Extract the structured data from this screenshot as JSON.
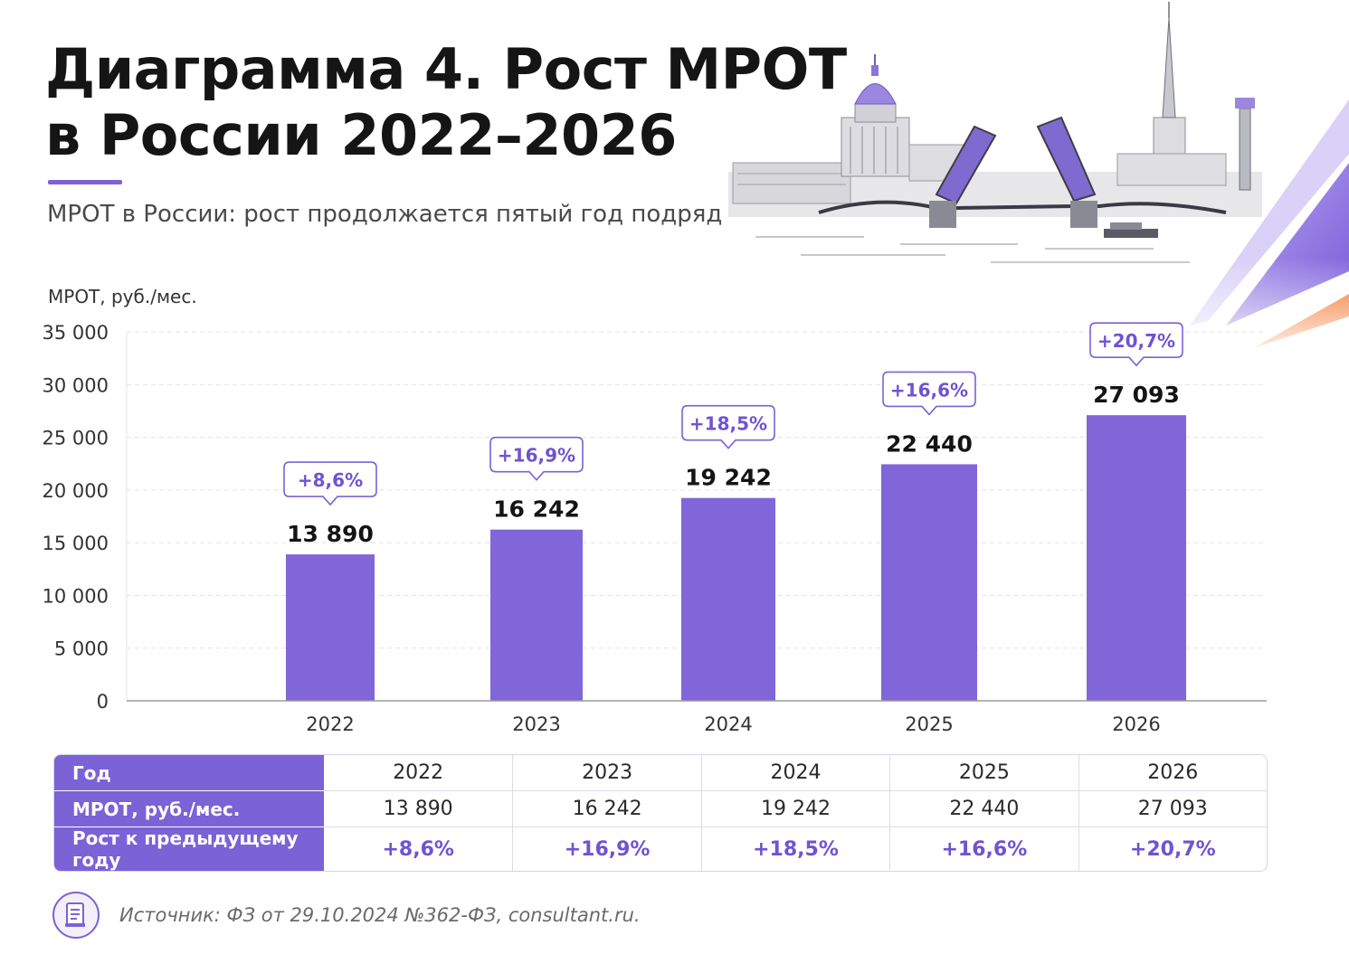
{
  "header": {
    "title_line1": "Диаграмма 4. Рост МРОТ",
    "title_line2": "в России 2022–2026",
    "subtitle": "МРОТ в России: рост продолжается пятый год подряд"
  },
  "colors": {
    "bar": "#8066d8",
    "accent": "#7b62d6",
    "growth_text": "#6f53d3",
    "orange_stripe": "#f26a1b"
  },
  "chart_data": {
    "type": "bar",
    "ylabel": "МРОТ, руб./мес.",
    "ylim": [
      0,
      35000
    ],
    "yticks": [
      0,
      5000,
      10000,
      15000,
      20000,
      25000,
      30000,
      35000
    ],
    "ytick_labels": [
      "0",
      "5 000",
      "10 000",
      "15 000",
      "20 000",
      "25 000",
      "30 000",
      "35 000"
    ],
    "grid": true,
    "categories": [
      "2022",
      "2023",
      "2024",
      "2025",
      "2026"
    ],
    "values": [
      13890,
      16242,
      19242,
      22440,
      27093
    ],
    "value_labels": [
      "13 890",
      "16 242",
      "19 242",
      "22 440",
      "27 093"
    ],
    "growth_labels": [
      "+8,6%",
      "+16,9%",
      "+18,5%",
      "+16,6%",
      "+20,7%"
    ]
  },
  "table": {
    "row_headers": [
      "Год",
      "МРОТ, руб./мес.",
      "Рост к предыдущему году"
    ],
    "years": [
      "2022",
      "2023",
      "2024",
      "2025",
      "2026"
    ],
    "values": [
      "13 890",
      "16 242",
      "19 242",
      "22 440",
      "27 093"
    ],
    "growth": [
      "+8,6%",
      "+16,9%",
      "+18,5%",
      "+16,6%",
      "+20,7%"
    ]
  },
  "source": {
    "icon": "document-icon",
    "text": "Источник: ФЗ от 29.10.2024 №362-ФЗ, consultant.ru."
  }
}
